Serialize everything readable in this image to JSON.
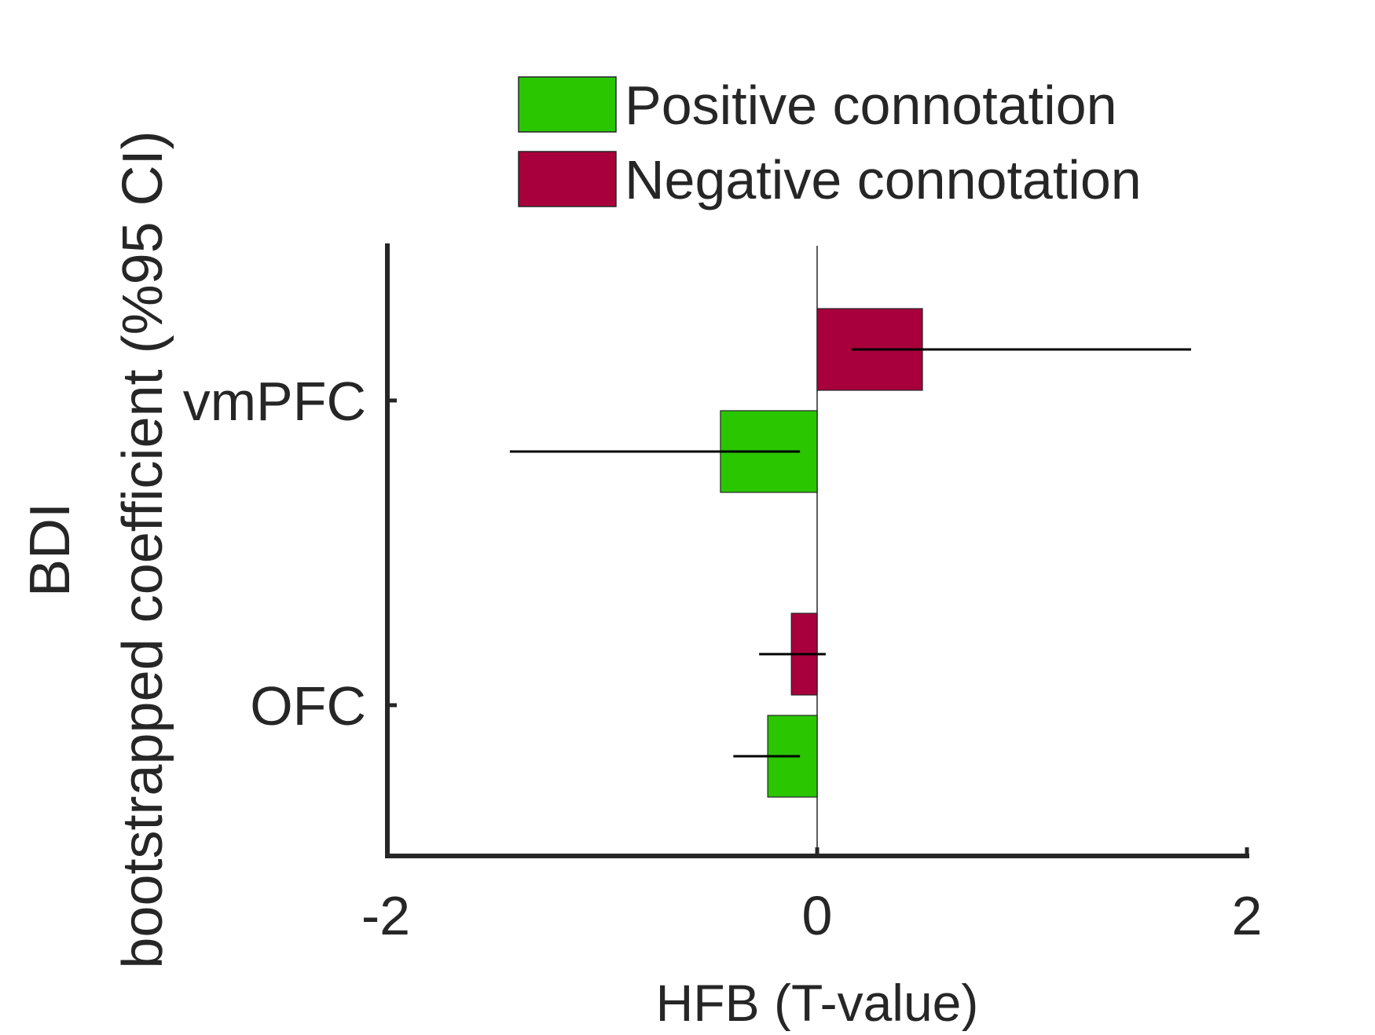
{
  "chart_data": {
    "type": "bar",
    "orientation": "horizontal",
    "categories": [
      "vmPFC",
      "OFC"
    ],
    "series": [
      {
        "name": "Positive connotation",
        "color": "#2AC600",
        "values": [
          -0.45,
          -0.23
        ],
        "ci_low": [
          -1.43,
          -0.39
        ],
        "ci_high": [
          -0.08,
          -0.08
        ]
      },
      {
        "name": "Negative connotation",
        "color": "#A8003C",
        "values": [
          0.49,
          -0.12
        ],
        "ci_low": [
          0.16,
          -0.27
        ],
        "ci_high": [
          1.74,
          0.04
        ]
      }
    ],
    "xlabel": "HFB (T-value)",
    "ylabel_lines": [
      "BDI",
      "bootstrapped coefficient (%95 CI)"
    ],
    "xlim": [
      -2,
      2
    ],
    "xticks": [
      -2,
      0,
      2
    ],
    "xtick_labels": [
      "-2",
      "0",
      "2"
    ],
    "zero_line": true,
    "grid": false,
    "legend_position": "top"
  }
}
